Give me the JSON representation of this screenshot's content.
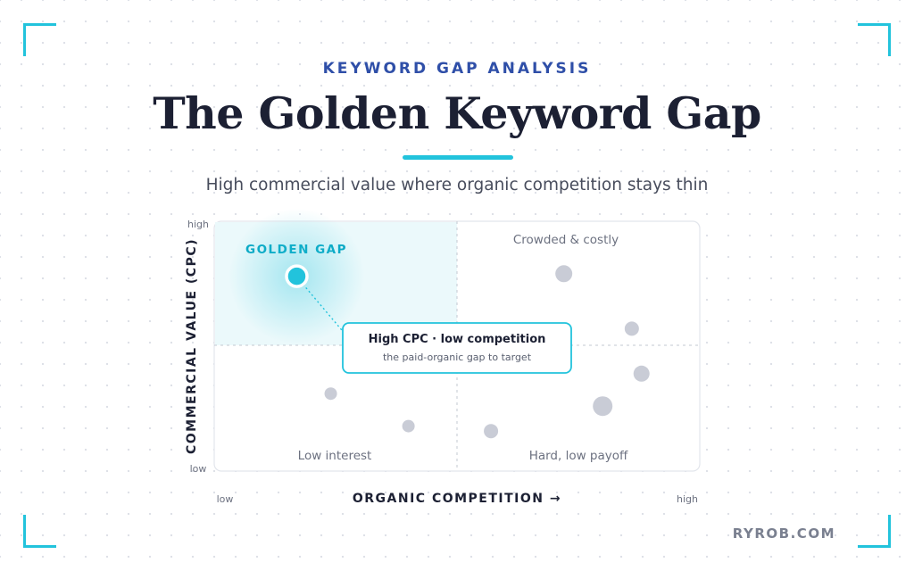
{
  "header": {
    "eyebrow": "KEYWORD GAP ANALYSIS",
    "title": "The Golden Keyword Gap",
    "subtitle": "High commercial value where organic competition stays thin"
  },
  "brand": "RYROB.COM",
  "colors": {
    "accent": "#22c3dc",
    "highlight": "#0aa8c4",
    "point": "#c9ccd6",
    "eyebrow": "#2f4fa8",
    "text": "#1c2033"
  },
  "chart_data": {
    "type": "scatter",
    "xlabel": "ORGANIC COMPETITION →",
    "ylabel": "COMMERCIAL VALUE (CPC)",
    "xlim": [
      0,
      100
    ],
    "ylim": [
      0,
      100
    ],
    "x_tick_labels": [
      "low",
      "high"
    ],
    "y_tick_labels": [
      "low",
      "high"
    ],
    "grid": false,
    "quadrant_labels": {
      "top_left": "GOLDEN GAP",
      "top_right": "Crowded & costly",
      "bottom_left": "Low interest",
      "bottom_right": "Hard, low payoff"
    },
    "highlight": {
      "x": 17,
      "y": 78
    },
    "points": [
      {
        "x": 72,
        "y": 79
      },
      {
        "x": 86,
        "y": 57
      },
      {
        "x": 88,
        "y": 39
      },
      {
        "x": 80,
        "y": 26
      },
      {
        "x": 24,
        "y": 31
      },
      {
        "x": 40,
        "y": 18
      },
      {
        "x": 57,
        "y": 16
      }
    ],
    "callout": {
      "title": "High CPC · low competition",
      "subtitle": "the paid-organic gap to target"
    }
  }
}
